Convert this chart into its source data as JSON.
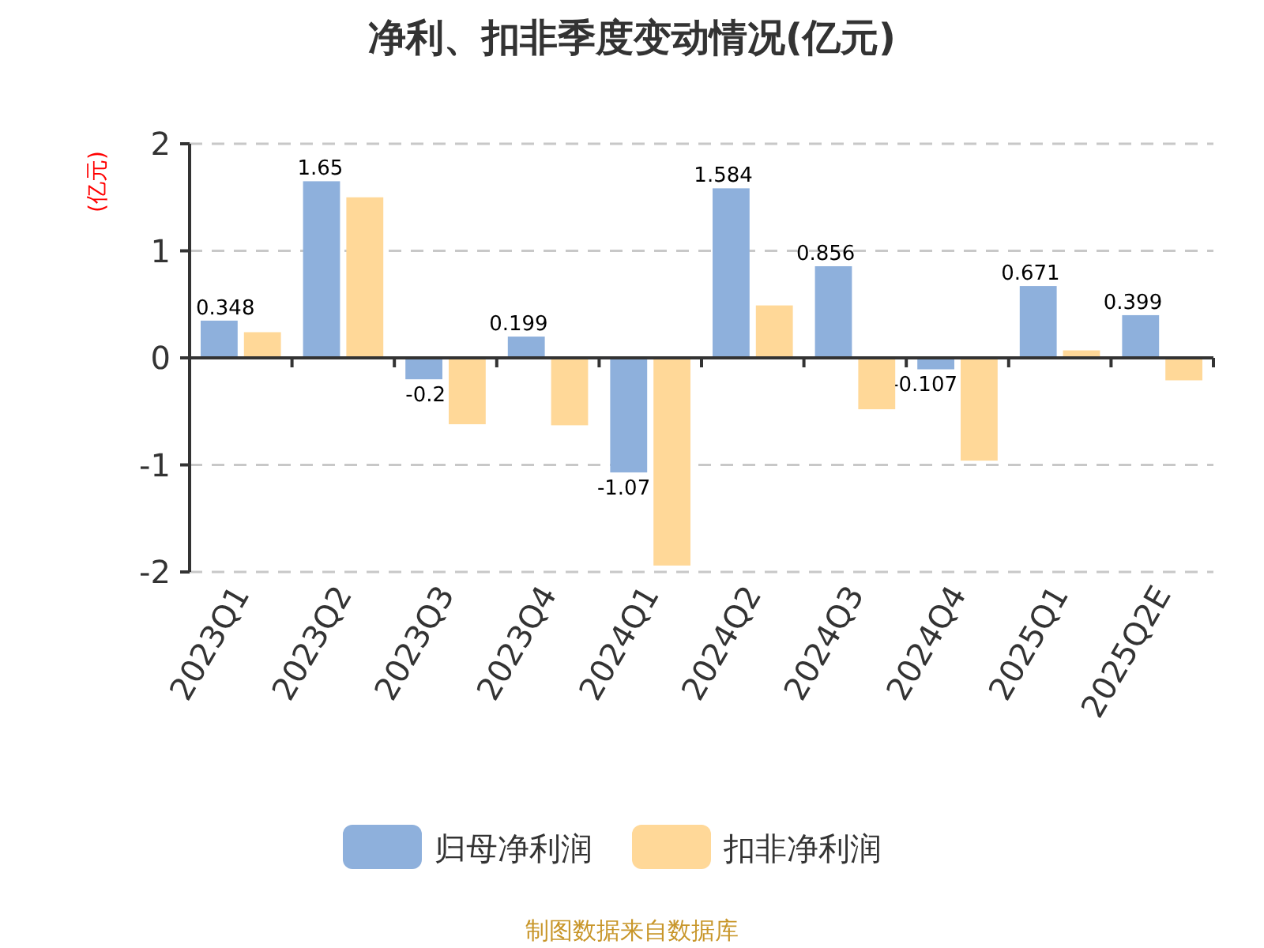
{
  "chart_data": {
    "type": "bar",
    "title": "净利、扣非季度变动情况(亿元)",
    "ylabel": "(亿元)",
    "categories": [
      "2023Q1",
      "2023Q2",
      "2023Q3",
      "2023Q4",
      "2024Q1",
      "2024Q2",
      "2024Q3",
      "2024Q4",
      "2025Q1",
      "2025Q2E"
    ],
    "series": [
      {
        "name": "归母净利润",
        "color": "#8eb0dc",
        "values": [
          0.348,
          1.65,
          -0.2,
          0.199,
          -1.07,
          1.584,
          0.856,
          -0.107,
          0.671,
          0.399
        ],
        "data_labels": true
      },
      {
        "name": "扣非净利润",
        "color": "#ffd898",
        "values": [
          0.24,
          1.5,
          -0.62,
          -0.63,
          -1.94,
          0.49,
          -0.48,
          -0.96,
          0.07,
          -0.21
        ]
      }
    ],
    "ylim": [
      -2,
      2
    ],
    "yticks": [
      -2,
      -1,
      0,
      1,
      2
    ],
    "grid": "y",
    "legend": "bottom",
    "annotations": [
      "制图数据来自数据库"
    ]
  }
}
